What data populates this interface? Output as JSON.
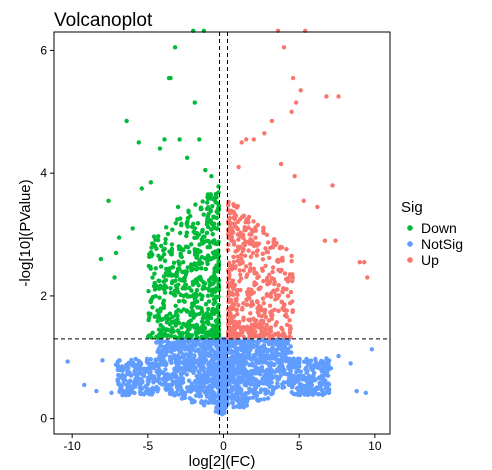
{
  "chart_data": {
    "type": "scatter",
    "title": "Volcanoplot",
    "xlabel": "log[2](FC)",
    "ylabel": "-log[10](PValue)",
    "xlim": [
      -11.2,
      11.0
    ],
    "ylim": [
      -0.25,
      6.3
    ],
    "x_ticks": [
      -10,
      -5,
      0,
      5,
      10
    ],
    "y_ticks": [
      0,
      2,
      4,
      6
    ],
    "grid": false,
    "legend": {
      "title": "Sig",
      "position": "right",
      "entries": [
        {
          "name": "Down",
          "color": "#00BA38"
        },
        {
          "name": "NotSig",
          "color": "#619CFF"
        },
        {
          "name": "Up",
          "color": "#F8766D"
        }
      ]
    },
    "thresholds": {
      "fc_lines": [
        -0.263,
        0.263
      ],
      "pvalue_line": 1.3
    },
    "series": [
      {
        "name": "Down",
        "color": "#00BA38",
        "points": [
          [
            -2.0,
            6.32
          ],
          [
            -1.3,
            6.32
          ],
          [
            -3.2,
            6.05
          ],
          [
            -3.6,
            5.55
          ],
          [
            -3.5,
            5.55
          ],
          [
            -1.9,
            5.15
          ],
          [
            -6.4,
            4.85
          ],
          [
            -5.6,
            4.5
          ],
          [
            -4.2,
            4.4
          ],
          [
            -3.9,
            4.55
          ],
          [
            -2.9,
            4.55
          ],
          [
            -1.6,
            4.55
          ],
          [
            -2.4,
            4.25
          ],
          [
            -7.6,
            3.55
          ],
          [
            -6.0,
            3.1
          ],
          [
            -6.9,
            2.95
          ],
          [
            -7.1,
            2.7
          ],
          [
            -8.1,
            2.6
          ],
          [
            -7.2,
            2.3
          ],
          [
            -5.4,
            3.75
          ],
          [
            -4.8,
            3.85
          ],
          [
            -3.0,
            3.45
          ],
          [
            -0.8,
            3.95
          ],
          [
            -1.2,
            4.05
          ],
          [
            -2.2,
            3.3
          ]
        ],
        "cloud": {
          "x_range": [
            -5.0,
            -0.3
          ],
          "y_range": [
            1.32,
            3.8
          ],
          "count": 620
        }
      },
      {
        "name": "Up",
        "color": "#F8766D",
        "points": [
          [
            3.6,
            6.32
          ],
          [
            4.0,
            6.05
          ],
          [
            5.4,
            6.32
          ],
          [
            4.6,
            5.55
          ],
          [
            5.1,
            5.35
          ],
          [
            6.8,
            5.25
          ],
          [
            7.6,
            5.25
          ],
          [
            4.8,
            5.15
          ],
          [
            4.5,
            5.0
          ],
          [
            3.2,
            4.85
          ],
          [
            2.7,
            4.65
          ],
          [
            2.0,
            4.55
          ],
          [
            1.5,
            4.55
          ],
          [
            1.2,
            4.5
          ],
          [
            7.2,
            3.8
          ],
          [
            9.0,
            2.55
          ],
          [
            9.3,
            2.55
          ],
          [
            9.5,
            2.3
          ],
          [
            6.7,
            2.9
          ],
          [
            7.4,
            2.9
          ],
          [
            6.2,
            3.45
          ],
          [
            5.3,
            3.55
          ],
          [
            4.7,
            3.95
          ],
          [
            3.8,
            4.15
          ],
          [
            1.0,
            4.1
          ]
        ],
        "cloud": {
          "x_range": [
            0.3,
            4.6
          ],
          "y_range": [
            1.32,
            3.6
          ],
          "count": 520
        }
      },
      {
        "name": "NotSig",
        "color": "#619CFF",
        "points": [
          [
            -10.3,
            0.93
          ],
          [
            -8.0,
            0.95
          ],
          [
            -7.1,
            0.88
          ],
          [
            -6.7,
            0.85
          ],
          [
            -6.2,
            0.9
          ],
          [
            9.8,
            1.13
          ],
          [
            7.6,
            1.02
          ],
          [
            6.8,
            0.98
          ],
          [
            8.4,
            0.9
          ],
          [
            7.1,
            0.82
          ],
          [
            -9.2,
            0.55
          ],
          [
            -8.4,
            0.45
          ],
          [
            -7.4,
            0.42
          ],
          [
            9.4,
            0.42
          ],
          [
            8.8,
            0.45
          ]
        ],
        "cloud": {
          "x_range": [
            -7.0,
            7.0
          ],
          "y_range": [
            0.0,
            1.3
          ],
          "count": 1900
        }
      }
    ]
  }
}
